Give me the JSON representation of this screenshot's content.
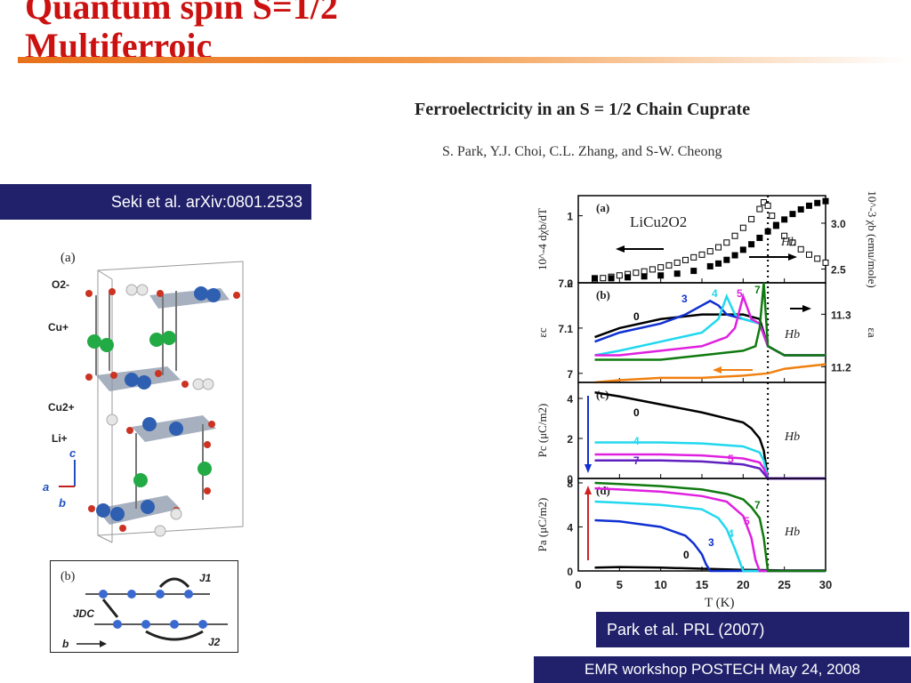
{
  "slide": {
    "title_line1": "Quantum spin S=1/2",
    "title_line2": "Multiferroic",
    "seki_label": "Seki et al. arXiv:0801.2533",
    "park_label": "Park et al. PRL (2007)",
    "footer": "EMR workshop POSTECH  May  24, 2008"
  },
  "paper": {
    "title": "Ferroelectricity in an S = 1/2 Chain Cuprate",
    "authors": "S. Park, Y.J. Choi, C.L. Zhang, and S-W. Cheong"
  },
  "structure_figure": {
    "panel_a": "(a)",
    "labels": [
      "O2-",
      "Cu+",
      "Cu2+",
      "Li+"
    ],
    "axes": [
      "c",
      "a",
      "b"
    ],
    "panel_b": "(b)",
    "couplings": [
      "J1",
      "JDC",
      "J2"
    ],
    "chain_axis": "b"
  },
  "chart_data": {
    "type": "line",
    "xlabel": "T (K)",
    "xlim": [
      0,
      30
    ],
    "x_ticks": [
      0,
      5,
      10,
      15,
      20,
      25,
      30
    ],
    "transition_T": 23,
    "compound": "LiCu2O2",
    "field_label": "Hb",
    "panels": [
      {
        "id": "a",
        "label": "(a)",
        "ylabel_left": "10^-4 dχb/dT",
        "ylabel_right": "10^-3 χb (emu/mole)",
        "ylim_left": [
          0,
          1.3
        ],
        "yticks_left": [
          0,
          1
        ],
        "ylim_right": [
          2.35,
          3.3
        ],
        "yticks_right": [
          2.5,
          3.0
        ],
        "series": [
          {
            "name": "dχ/dT",
            "axis": "left",
            "marker": "open-square",
            "color": "#000000",
            "x": [
              2,
              3,
              4,
              5,
              6,
              7,
              8,
              9,
              10,
              11,
              12,
              13,
              14,
              15,
              16,
              17,
              18,
              19,
              20,
              21,
              22,
              22.5,
              23,
              23.5,
              24,
              25,
              26,
              27,
              28,
              29,
              30
            ],
            "y": [
              0.05,
              0.07,
              0.09,
              0.11,
              0.13,
              0.15,
              0.17,
              0.2,
              0.23,
              0.26,
              0.3,
              0.34,
              0.38,
              0.42,
              0.47,
              0.53,
              0.6,
              0.7,
              0.82,
              0.95,
              1.1,
              1.2,
              1.15,
              1.0,
              0.85,
              0.7,
              0.6,
              0.5,
              0.42,
              0.36,
              0.3
            ]
          },
          {
            "name": "χb",
            "axis": "right",
            "marker": "filled-square",
            "color": "#000000",
            "x": [
              2,
              4,
              6,
              8,
              10,
              12,
              14,
              16,
              17,
              18,
              19,
              20,
              21,
              22,
              23,
              24,
              25,
              26,
              27,
              28,
              29,
              30
            ],
            "y": [
              2.4,
              2.4,
              2.41,
              2.42,
              2.43,
              2.45,
              2.48,
              2.53,
              2.56,
              2.6,
              2.65,
              2.71,
              2.77,
              2.84,
              2.91,
              2.98,
              3.04,
              3.1,
              3.15,
              3.19,
              3.22,
              3.24
            ]
          }
        ]
      },
      {
        "id": "b",
        "label": "(b)",
        "ylabel_left": "εc",
        "ylabel_right": "εa",
        "ylim_left": [
          6.98,
          7.2
        ],
        "yticks_left": [
          7.0,
          7.1,
          7.2
        ],
        "ylim_right": [
          11.17,
          11.36
        ],
        "yticks_right": [
          11.2,
          11.3
        ],
        "series": [
          {
            "name": "0",
            "axis": "left",
            "color": "#000000",
            "x": [
              2,
              5,
              10,
              15,
              20,
              22,
              23,
              25,
              30
            ],
            "y": [
              7.08,
              7.1,
              7.12,
              7.13,
              7.13,
              7.12,
              7.06,
              7.04,
              7.04
            ]
          },
          {
            "name": "3",
            "axis": "left",
            "color": "#1030d0",
            "x": [
              2,
              5,
              10,
              13,
              15,
              16,
              17,
              18,
              20,
              22,
              23,
              25,
              30
            ],
            "y": [
              7.07,
              7.09,
              7.11,
              7.13,
              7.15,
              7.16,
              7.15,
              7.13,
              7.12,
              7.11,
              7.06,
              7.04,
              7.04
            ]
          },
          {
            "name": "4",
            "axis": "left",
            "color": "#20d8ee",
            "x": [
              2,
              5,
              10,
              15,
              17,
              18,
              19,
              20,
              22,
              23,
              25,
              30
            ],
            "y": [
              7.04,
              7.05,
              7.07,
              7.09,
              7.12,
              7.17,
              7.13,
              7.12,
              7.11,
              7.06,
              7.04,
              7.04
            ]
          },
          {
            "name": "5",
            "axis": "left",
            "color": "#e020e0",
            "x": [
              2,
              5,
              10,
              15,
              18,
              19,
              20,
              21,
              22,
              23,
              25,
              30
            ],
            "y": [
              7.04,
              7.04,
              7.05,
              7.06,
              7.08,
              7.1,
              7.17,
              7.12,
              7.11,
              7.06,
              7.04,
              7.04
            ]
          },
          {
            "name": "7",
            "axis": "left",
            "color": "#107a10",
            "x": [
              2,
              5,
              10,
              15,
              20,
              21.5,
              22,
              22.5,
              23,
              25,
              30
            ],
            "y": [
              7.03,
              7.03,
              7.03,
              7.04,
              7.05,
              7.06,
              7.1,
              7.2,
              7.06,
              7.04,
              7.04
            ]
          },
          {
            "name": "εa",
            "axis": "left",
            "color": "#f08010",
            "x": [
              2,
              5,
              10,
              15,
              20,
              23,
              25,
              30
            ],
            "y": [
              6.98,
              6.985,
              6.99,
              6.99,
              6.995,
              7.0,
              7.01,
              7.02
            ]
          }
        ]
      },
      {
        "id": "c",
        "label": "(c)",
        "ylabel_left": "Pc (μC/m2)",
        "ylim_left": [
          0,
          4.8
        ],
        "yticks_left": [
          0,
          2,
          4
        ],
        "series": [
          {
            "name": "0",
            "color": "#000000",
            "x": [
              2,
              5,
              10,
              15,
              20,
              21,
              22,
              22.5,
              23,
              30
            ],
            "y": [
              4.3,
              4.1,
              3.7,
              3.3,
              2.8,
              2.5,
              2.0,
              1.4,
              0,
              0
            ]
          },
          {
            "name": "4",
            "color": "#20d8ee",
            "x": [
              2,
              5,
              10,
              15,
              20,
              22,
              22.5,
              23,
              30
            ],
            "y": [
              1.8,
              1.8,
              1.8,
              1.75,
              1.6,
              1.3,
              0.9,
              0,
              0
            ]
          },
          {
            "name": "5",
            "color": "#e020e0",
            "x": [
              2,
              5,
              10,
              15,
              20,
              22,
              22.5,
              23,
              30
            ],
            "y": [
              1.2,
              1.2,
              1.2,
              1.15,
              1.0,
              0.8,
              0.5,
              0,
              0
            ]
          },
          {
            "name": "7",
            "color": "#6020c0",
            "x": [
              2,
              5,
              10,
              15,
              20,
              22,
              23,
              30
            ],
            "y": [
              0.9,
              0.9,
              0.9,
              0.85,
              0.7,
              0.5,
              0,
              0
            ]
          }
        ]
      },
      {
        "id": "d",
        "label": "(d)",
        "ylabel_left": "Pa (μC/m2)",
        "ylim_left": [
          0,
          8.4
        ],
        "yticks_left": [
          0,
          4,
          8
        ],
        "series": [
          {
            "name": "0",
            "color": "#000000",
            "x": [
              2,
              5,
              10,
              15,
              20,
              25,
              30
            ],
            "y": [
              0.3,
              0.35,
              0.3,
              0.2,
              0.1,
              0.05,
              0.05
            ]
          },
          {
            "name": "3",
            "color": "#1030d0",
            "x": [
              2,
              5,
              10,
              13,
              14,
              15,
              15.5,
              16,
              30
            ],
            "y": [
              4.6,
              4.5,
              4.0,
              3.2,
              2.5,
              1.5,
              0.6,
              0,
              0
            ]
          },
          {
            "name": "4",
            "color": "#20d8ee",
            "x": [
              2,
              5,
              10,
              15,
              17,
              18,
              19,
              20,
              30
            ],
            "y": [
              6.3,
              6.2,
              6.0,
              5.6,
              4.8,
              3.8,
              2.0,
              0,
              0
            ]
          },
          {
            "name": "5",
            "color": "#e020e0",
            "x": [
              2,
              5,
              10,
              15,
              18,
              20,
              21,
              21.5,
              22,
              30
            ],
            "y": [
              7.5,
              7.4,
              7.2,
              6.8,
              6.3,
              5.0,
              3.0,
              1.0,
              0,
              0
            ]
          },
          {
            "name": "7",
            "color": "#107a10",
            "x": [
              2,
              5,
              10,
              15,
              18,
              20,
              21,
              22,
              22.5,
              23,
              30
            ],
            "y": [
              8.0,
              7.9,
              7.7,
              7.4,
              7.0,
              6.5,
              5.8,
              4.8,
              3.0,
              0,
              0
            ]
          }
        ]
      }
    ]
  }
}
